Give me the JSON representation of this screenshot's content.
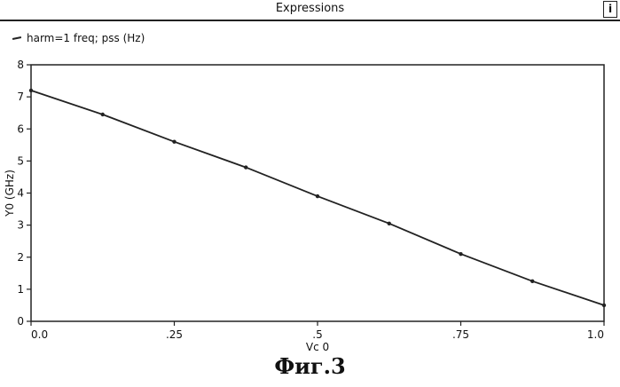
{
  "window": {
    "title": "Expressions",
    "button_glyph": "i"
  },
  "legend": {
    "label": "harm=1 freq; pss (Hz)"
  },
  "chart_data": {
    "type": "line",
    "title": "",
    "xlabel": "Vc 0",
    "ylabel": "Y0 (GHz)",
    "xlim": [
      0.0,
      1.0
    ],
    "ylim": [
      0,
      8
    ],
    "x_ticks": [
      0.0,
      0.25,
      0.5,
      0.75,
      1.0
    ],
    "x_tick_labels": [
      "0.0",
      ".25",
      ".5",
      ".75",
      "1.0"
    ],
    "y_ticks": [
      0,
      1,
      2,
      3,
      4,
      5,
      6,
      7,
      8
    ],
    "y_tick_labels": [
      "0",
      "1",
      "2",
      "3",
      "4",
      "5",
      "6",
      "7",
      "8"
    ],
    "grid": false,
    "legend_position": "top-left",
    "series": [
      {
        "name": "harm=1 freq; pss (Hz)",
        "x": [
          0.0,
          0.125,
          0.25,
          0.375,
          0.5,
          0.625,
          0.75,
          0.875,
          1.0
        ],
        "y": [
          7.2,
          6.45,
          5.6,
          4.8,
          3.9,
          3.05,
          2.1,
          1.25,
          0.5
        ]
      }
    ]
  },
  "caption": "Фиг.3",
  "colors": {
    "line": "#222222",
    "background": "#ffffff"
  }
}
